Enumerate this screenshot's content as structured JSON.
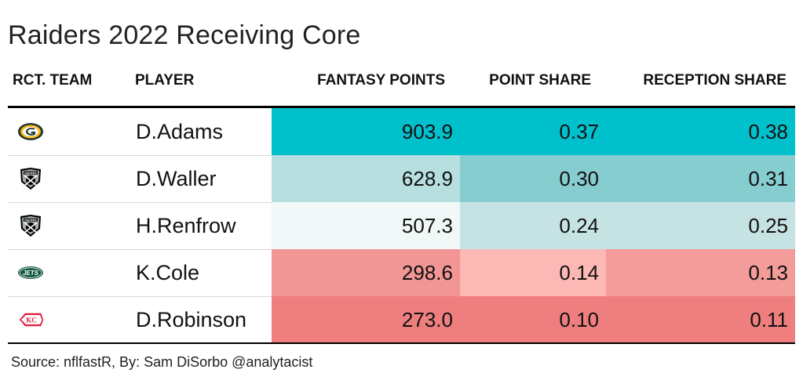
{
  "title": "Raiders 2022 Receiving Core",
  "headers": {
    "team": "RCT. TEAM",
    "player": "PLAYER",
    "fantasy_points": "FANTASY POINTS",
    "point_share": "POINT SHARE",
    "reception_share": "RECEPTION SHARE"
  },
  "rows": [
    {
      "team_icon": "packers-logo-icon",
      "player": "D.Adams",
      "fantasy_points": "903.9",
      "point_share": "0.37",
      "reception_share": "0.38",
      "colors": {
        "fp": "#00c0cc",
        "ps": "#00c0cc",
        "rs": "#00c0cc"
      }
    },
    {
      "team_icon": "raiders-logo-icon",
      "player": "D.Waller",
      "fantasy_points": "628.9",
      "point_share": "0.30",
      "reception_share": "0.31",
      "colors": {
        "fp": "#b7dfdf",
        "ps": "#86cdd0",
        "rs": "#86cdd0"
      }
    },
    {
      "team_icon": "raiders-logo-icon",
      "player": "H.Renfrow",
      "fantasy_points": "507.3",
      "point_share": "0.24",
      "reception_share": "0.25",
      "colors": {
        "fp": "#f1f8f8",
        "ps": "#c6e3e3",
        "rs": "#c6e3e3"
      }
    },
    {
      "team_icon": "jets-logo-icon",
      "player": "K.Cole",
      "fantasy_points": "298.6",
      "point_share": "0.14",
      "reception_share": "0.13",
      "colors": {
        "fp": "#f29595",
        "ps": "#fcb8b4",
        "rs": "#f49c99"
      }
    },
    {
      "team_icon": "chiefs-logo-icon",
      "player": "D.Robinson",
      "fantasy_points": "273.0",
      "point_share": "0.10",
      "reception_share": "0.11",
      "colors": {
        "fp": "#ef7f7f",
        "ps": "#ef7f7f",
        "rs": "#ef7f7f"
      }
    }
  ],
  "source": "Source: nflfastR, By: Sam DiSorbo @analytacist",
  "chart_data": {
    "type": "table",
    "title": "Raiders 2022 Receiving Core",
    "columns": [
      "RCT. TEAM",
      "PLAYER",
      "FANTASY POINTS",
      "POINT SHARE",
      "RECEPTION SHARE"
    ],
    "rows": [
      [
        "packers-logo-icon",
        "D.Adams",
        903.9,
        0.37,
        0.38
      ],
      [
        "raiders-logo-icon",
        "D.Waller",
        628.9,
        0.3,
        0.31
      ],
      [
        "raiders-logo-icon",
        "H.Renfrow",
        507.3,
        0.24,
        0.25
      ],
      [
        "jets-logo-icon",
        "K.Cole",
        298.6,
        0.14,
        0.13
      ],
      [
        "chiefs-logo-icon",
        "D.Robinson",
        273.0,
        0.1,
        0.11
      ]
    ]
  }
}
